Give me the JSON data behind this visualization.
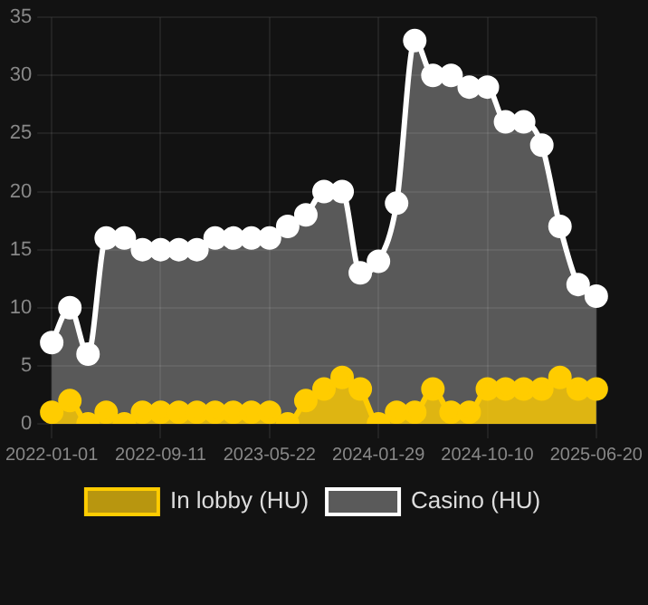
{
  "chart_data": {
    "type": "area",
    "categories": [
      "2022-01-01",
      null,
      null,
      null,
      null,
      null,
      "2022-09-11",
      null,
      null,
      null,
      null,
      null,
      "2023-05-22",
      null,
      null,
      null,
      null,
      null,
      "2024-01-29",
      null,
      null,
      null,
      null,
      null,
      "2024-10-10",
      null,
      null,
      null,
      null,
      null,
      "2025-06-20"
    ],
    "series": [
      {
        "name": "In lobby (HU)",
        "color": "#ffcc00",
        "values": [
          1,
          2,
          0,
          1,
          0,
          1,
          1,
          1,
          1,
          1,
          1,
          1,
          1,
          0,
          2,
          3,
          4,
          3,
          0,
          1,
          1,
          3,
          1,
          1,
          3,
          3,
          3,
          3,
          4,
          3,
          3
        ]
      },
      {
        "name": "Casino (HU)",
        "color": "#ffffff",
        "values": [
          7,
          10,
          6,
          16,
          16,
          15,
          15,
          15,
          15,
          16,
          16,
          16,
          16,
          17,
          18,
          20,
          20,
          13,
          14,
          19,
          33,
          30,
          30,
          29,
          29,
          26,
          26,
          24,
          17,
          12,
          11
        ]
      }
    ],
    "ylim": [
      0,
      35
    ],
    "yticks": [
      0,
      5,
      10,
      15,
      20,
      25,
      30,
      35
    ],
    "grid": true,
    "legend": "bottom",
    "marker": "circle"
  }
}
